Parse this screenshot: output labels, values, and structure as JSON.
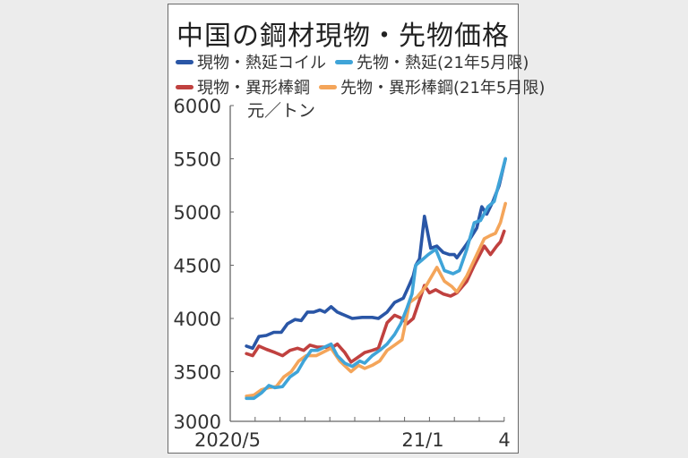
{
  "title": "中国の鋼材現物・先物価格",
  "legend": [
    {
      "label": "現物・熱延コイル",
      "color": "#2a56a6"
    },
    {
      "label": "先物・熱延(21年5月限)",
      "color": "#3fa4d8"
    },
    {
      "label": "現物・異形棒鋼",
      "color": "#c0413f"
    },
    {
      "label": "先物・異形棒鋼(21年5月限)",
      "color": "#f4a55a"
    }
  ],
  "unit_label": "元／トン",
  "chart_data": {
    "type": "line",
    "title": "中国の鋼材現物・先物価格",
    "xlabel": "",
    "ylabel": "元／トン",
    "ylim": [
      3000,
      6000
    ],
    "yticks": [
      3000,
      3500,
      4000,
      4500,
      5000,
      5500,
      6000
    ],
    "xtick_labels": [
      {
        "label": "2020/5",
        "month_index": 0
      },
      {
        "label": "21/1",
        "month_index": 8
      },
      {
        "label": "4",
        "month_index": 11
      }
    ],
    "x_unit": "month index (0 = 2020/5, 11 = 2021/4)",
    "grid": false,
    "legend_position": "top",
    "series": [
      {
        "name": "現物・熱延コイル",
        "color": "#2a56a6",
        "points": [
          [
            0.65,
            3740
          ],
          [
            0.9,
            3720
          ],
          [
            1.15,
            3830
          ],
          [
            1.45,
            3840
          ],
          [
            1.75,
            3870
          ],
          [
            2.05,
            3870
          ],
          [
            2.3,
            3950
          ],
          [
            2.6,
            3990
          ],
          [
            2.85,
            3980
          ],
          [
            3.1,
            4060
          ],
          [
            3.35,
            4060
          ],
          [
            3.6,
            4080
          ],
          [
            3.8,
            4060
          ],
          [
            4.05,
            4110
          ],
          [
            4.3,
            4060
          ],
          [
            4.9,
            4000
          ],
          [
            5.3,
            4010
          ],
          [
            5.7,
            4010
          ],
          [
            5.95,
            4000
          ],
          [
            6.3,
            4060
          ],
          [
            6.6,
            4150
          ],
          [
            6.95,
            4190
          ],
          [
            7.2,
            4320
          ],
          [
            7.35,
            4400
          ],
          [
            7.45,
            4500
          ],
          [
            7.6,
            4560
          ],
          [
            7.8,
            4960
          ],
          [
            8.05,
            4660
          ],
          [
            8.3,
            4680
          ],
          [
            8.55,
            4620
          ],
          [
            8.8,
            4600
          ],
          [
            9.0,
            4600
          ],
          [
            9.1,
            4570
          ],
          [
            9.5,
            4700
          ],
          [
            9.9,
            4850
          ],
          [
            10.1,
            5050
          ],
          [
            10.3,
            4980
          ],
          [
            10.55,
            5100
          ],
          [
            10.8,
            5250
          ],
          [
            11.05,
            5500
          ]
        ]
      },
      {
        "name": "先物・熱延(21年5月限)",
        "color": "#3fa4d8",
        "points": [
          [
            0.65,
            3250
          ],
          [
            0.95,
            3250
          ],
          [
            1.25,
            3300
          ],
          [
            1.55,
            3370
          ],
          [
            1.8,
            3350
          ],
          [
            2.1,
            3360
          ],
          [
            2.4,
            3450
          ],
          [
            2.7,
            3500
          ],
          [
            2.95,
            3600
          ],
          [
            3.25,
            3700
          ],
          [
            3.5,
            3700
          ],
          [
            4.05,
            3760
          ],
          [
            4.3,
            3650
          ],
          [
            4.6,
            3580
          ],
          [
            4.9,
            3550
          ],
          [
            5.2,
            3600
          ],
          [
            5.4,
            3580
          ],
          [
            5.7,
            3650
          ],
          [
            6.0,
            3700
          ],
          [
            6.3,
            3760
          ],
          [
            6.6,
            3850
          ],
          [
            6.85,
            3950
          ],
          [
            7.1,
            4100
          ],
          [
            7.3,
            4230
          ],
          [
            7.45,
            4500
          ],
          [
            7.7,
            4550
          ],
          [
            7.95,
            4600
          ],
          [
            8.25,
            4650
          ],
          [
            8.6,
            4450
          ],
          [
            8.95,
            4420
          ],
          [
            9.2,
            4450
          ],
          [
            9.5,
            4650
          ],
          [
            9.8,
            4900
          ],
          [
            10.05,
            4920
          ],
          [
            10.35,
            5050
          ],
          [
            10.6,
            5100
          ],
          [
            11.05,
            5500
          ]
        ]
      },
      {
        "name": "現物・異形棒鋼",
        "color": "#c0413f",
        "points": [
          [
            0.65,
            3670
          ],
          [
            0.9,
            3650
          ],
          [
            1.15,
            3740
          ],
          [
            1.45,
            3710
          ],
          [
            1.8,
            3680
          ],
          [
            2.1,
            3650
          ],
          [
            2.4,
            3700
          ],
          [
            2.7,
            3720
          ],
          [
            2.95,
            3700
          ],
          [
            3.2,
            3750
          ],
          [
            3.5,
            3730
          ],
          [
            3.8,
            3730
          ],
          [
            4.05,
            3720
          ],
          [
            4.3,
            3760
          ],
          [
            4.6,
            3680
          ],
          [
            4.85,
            3590
          ],
          [
            5.1,
            3630
          ],
          [
            5.4,
            3680
          ],
          [
            5.7,
            3700
          ],
          [
            5.95,
            3720
          ],
          [
            6.3,
            3960
          ],
          [
            6.6,
            4030
          ],
          [
            6.9,
            4000
          ],
          [
            7.1,
            3950
          ],
          [
            7.35,
            4000
          ],
          [
            7.8,
            4310
          ],
          [
            8.0,
            4240
          ],
          [
            8.25,
            4270
          ],
          [
            8.55,
            4230
          ],
          [
            8.85,
            4210
          ],
          [
            9.1,
            4240
          ],
          [
            9.5,
            4350
          ],
          [
            9.8,
            4500
          ],
          [
            10.2,
            4680
          ],
          [
            10.45,
            4600
          ],
          [
            10.7,
            4680
          ],
          [
            10.85,
            4720
          ],
          [
            11.0,
            4820
          ]
        ]
      },
      {
        "name": "先物・異形棒鋼(21年5月限)",
        "color": "#f4a55a",
        "points": [
          [
            0.65,
            3270
          ],
          [
            0.95,
            3280
          ],
          [
            1.25,
            3330
          ],
          [
            1.55,
            3350
          ],
          [
            1.85,
            3360
          ],
          [
            2.15,
            3450
          ],
          [
            2.45,
            3500
          ],
          [
            2.75,
            3600
          ],
          [
            3.05,
            3650
          ],
          [
            3.45,
            3650
          ],
          [
            4.05,
            3720
          ],
          [
            4.4,
            3600
          ],
          [
            4.85,
            3500
          ],
          [
            5.15,
            3560
          ],
          [
            5.4,
            3530
          ],
          [
            5.7,
            3560
          ],
          [
            6.0,
            3600
          ],
          [
            6.3,
            3700
          ],
          [
            6.6,
            3750
          ],
          [
            6.9,
            3800
          ],
          [
            7.2,
            4150
          ],
          [
            7.5,
            4200
          ],
          [
            7.85,
            4300
          ],
          [
            8.3,
            4480
          ],
          [
            8.6,
            4350
          ],
          [
            8.9,
            4300
          ],
          [
            9.1,
            4250
          ],
          [
            9.5,
            4400
          ],
          [
            9.9,
            4600
          ],
          [
            10.2,
            4750
          ],
          [
            10.45,
            4780
          ],
          [
            10.65,
            4800
          ],
          [
            10.85,
            4900
          ],
          [
            11.05,
            5080
          ]
        ]
      }
    ]
  }
}
